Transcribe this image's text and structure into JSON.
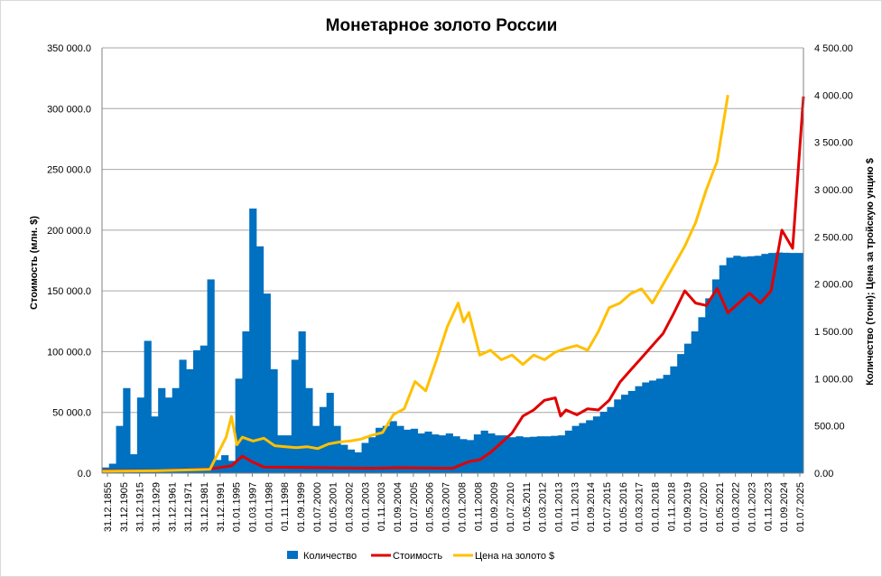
{
  "chart_data": {
    "type": "bar",
    "title": "Монетарное золото России",
    "ylabel_left": "Стоимость    (млн. $)",
    "ylabel_right": "Количество   (тонн);  Цена  за  тройскую  унцию  $",
    "ylim_left": [
      0,
      350000
    ],
    "ylim_right": [
      0,
      4500
    ],
    "y_left_ticks": [
      "0.0",
      "50 000.0",
      "100 000.0",
      "150 000.0",
      "200 000.0",
      "250 000.0",
      "300 000.0",
      "350 000.0"
    ],
    "y_right_ticks": [
      "0.00",
      "500.00",
      "1 000.00",
      "1 500.00",
      "2 000.00",
      "2 500.00",
      "3 000.00",
      "3 500.00",
      "4 000.00",
      "4 500.00"
    ],
    "x_tick_labels": [
      "31.12.1855",
      "31.12.1905",
      "31.12.1915",
      "31.12.1929",
      "31.12.1961",
      "31.12.1971",
      "31.12.1981",
      "31.12.1991",
      "01.01.1995",
      "01.03.1997",
      "01.01.1998",
      "01.11.1998",
      "01.09.1999",
      "01.07.2000",
      "01.05.2001",
      "01.03.2002",
      "01.01.2003",
      "01.11.2003",
      "01.09.2004",
      "01.07.2005",
      "01.05.2006",
      "01.03.2007",
      "01.01.2008",
      "01.11.2008",
      "01.09.2009",
      "01.07.2010",
      "01.05.2011",
      "01.03.2012",
      "01.01.2013",
      "01.11.2013",
      "01.09.2014",
      "01.07.2015",
      "01.05.2016",
      "01.03.2017",
      "01.01.2018",
      "01.11.2018",
      "01.09.2019",
      "01.07.2020",
      "01.05.2021",
      "01.03.2022",
      "01.01.2023",
      "01.11.2023",
      "01.09.2024",
      "01.07.2025"
    ],
    "grid": "horizontal",
    "legend_position": "bottom",
    "series": [
      {
        "name": "Количество",
        "kind": "bar",
        "axis": "right",
        "color": "#0070c0",
        "points": [
          [
            0,
            60
          ],
          [
            1,
            100
          ],
          [
            2,
            500
          ],
          [
            3,
            900
          ],
          [
            4,
            200
          ],
          [
            5,
            800
          ],
          [
            6,
            1400
          ],
          [
            7,
            600
          ],
          [
            8,
            900
          ],
          [
            9,
            800
          ],
          [
            10,
            900
          ],
          [
            11,
            1200
          ],
          [
            12,
            1100
          ],
          [
            13,
            1300
          ],
          [
            14,
            1350
          ],
          [
            15,
            2050
          ],
          [
            16,
            140
          ],
          [
            17,
            190
          ],
          [
            18,
            130
          ],
          [
            19,
            1000
          ],
          [
            20,
            1500
          ],
          [
            21,
            2800
          ],
          [
            22,
            2400
          ],
          [
            23,
            1900
          ],
          [
            24,
            1100
          ],
          [
            25,
            400
          ],
          [
            26,
            400
          ],
          [
            27,
            1200
          ],
          [
            28,
            1500
          ],
          [
            29,
            900
          ],
          [
            30,
            500
          ],
          [
            31,
            700
          ],
          [
            32,
            850
          ],
          [
            33,
            500
          ],
          [
            34,
            300
          ],
          [
            35,
            250
          ],
          [
            36,
            220
          ],
          [
            37,
            320
          ],
          [
            38,
            380
          ],
          [
            39,
            480
          ],
          [
            40,
            500
          ],
          [
            41,
            550
          ],
          [
            42,
            500
          ],
          [
            43,
            460
          ],
          [
            44,
            470
          ],
          [
            45,
            420
          ],
          [
            46,
            440
          ],
          [
            47,
            410
          ],
          [
            48,
            400
          ],
          [
            49,
            420
          ],
          [
            50,
            390
          ],
          [
            51,
            360
          ],
          [
            52,
            350
          ],
          [
            53,
            410
          ],
          [
            54,
            450
          ],
          [
            55,
            420
          ],
          [
            56,
            400
          ],
          [
            57,
            400
          ],
          [
            58,
            380
          ],
          [
            59,
            390
          ],
          [
            60,
            380
          ],
          [
            61,
            385
          ],
          [
            62,
            390
          ],
          [
            63,
            390
          ],
          [
            64,
            395
          ],
          [
            65,
            400
          ],
          [
            66,
            450
          ],
          [
            67,
            500
          ],
          [
            68,
            530
          ],
          [
            69,
            560
          ],
          [
            70,
            600
          ],
          [
            71,
            650
          ],
          [
            72,
            700
          ],
          [
            73,
            780
          ],
          [
            74,
            830
          ],
          [
            75,
            870
          ],
          [
            76,
            920
          ],
          [
            77,
            960
          ],
          [
            78,
            980
          ],
          [
            79,
            1000
          ],
          [
            80,
            1040
          ],
          [
            81,
            1130
          ],
          [
            82,
            1260
          ],
          [
            83,
            1370
          ],
          [
            84,
            1500
          ],
          [
            85,
            1650
          ],
          [
            86,
            1850
          ],
          [
            87,
            2050
          ],
          [
            88,
            2200
          ],
          [
            89,
            2280
          ],
          [
            90,
            2300
          ],
          [
            91,
            2290
          ],
          [
            92,
            2295
          ],
          [
            93,
            2300
          ],
          [
            94,
            2320
          ],
          [
            95,
            2330
          ],
          [
            96,
            2335
          ],
          [
            97,
            2332
          ],
          [
            98,
            2330
          ],
          [
            99,
            2330
          ]
        ]
      },
      {
        "name": "Стоимость",
        "kind": "line",
        "axis": "left",
        "color": "#e00000",
        "points": [
          [
            0,
            2000
          ],
          [
            10,
            2000
          ],
          [
            20,
            3500
          ],
          [
            24,
            6000
          ],
          [
            26,
            14000
          ],
          [
            28,
            9000
          ],
          [
            30,
            5000
          ],
          [
            40,
            4500
          ],
          [
            50,
            4000
          ],
          [
            55,
            4500
          ],
          [
            60,
            4200
          ],
          [
            65,
            4000
          ],
          [
            68,
            9500
          ],
          [
            70,
            11000
          ],
          [
            72,
            17000
          ],
          [
            74,
            25000
          ],
          [
            76,
            33000
          ],
          [
            78,
            47000
          ],
          [
            80,
            52000
          ],
          [
            82,
            60000
          ],
          [
            84,
            62000
          ],
          [
            85,
            47000
          ],
          [
            86,
            52000
          ],
          [
            88,
            48000
          ],
          [
            90,
            53000
          ],
          [
            92,
            52000
          ],
          [
            94,
            60000
          ],
          [
            96,
            75000
          ],
          [
            98,
            85000
          ],
          [
            100,
            95000
          ],
          [
            102,
            105000
          ],
          [
            104,
            115000
          ],
          [
            106,
            132000
          ],
          [
            108,
            150000
          ],
          [
            110,
            140000
          ],
          [
            112,
            138000
          ],
          [
            114,
            152000
          ],
          [
            116,
            132000
          ],
          [
            118,
            140000
          ],
          [
            120,
            148000
          ],
          [
            122,
            140000
          ],
          [
            124,
            150000
          ],
          [
            126,
            200000
          ],
          [
            128,
            185000
          ],
          [
            130,
            310000
          ]
        ]
      },
      {
        "name": "Цена на золото  $",
        "kind": "line",
        "axis": "right",
        "color": "#ffc000",
        "points": [
          [
            0,
            20
          ],
          [
            10,
            25
          ],
          [
            20,
            40
          ],
          [
            23,
            380
          ],
          [
            24,
            600
          ],
          [
            25,
            300
          ],
          [
            26,
            380
          ],
          [
            28,
            340
          ],
          [
            30,
            370
          ],
          [
            32,
            290
          ],
          [
            34,
            280
          ],
          [
            36,
            270
          ],
          [
            38,
            280
          ],
          [
            40,
            260
          ],
          [
            42,
            310
          ],
          [
            44,
            330
          ],
          [
            46,
            340
          ],
          [
            48,
            360
          ],
          [
            50,
            400
          ],
          [
            52,
            430
          ],
          [
            54,
            620
          ],
          [
            56,
            680
          ],
          [
            58,
            970
          ],
          [
            60,
            870
          ],
          [
            62,
            1200
          ],
          [
            64,
            1550
          ],
          [
            66,
            1800
          ],
          [
            67,
            1600
          ],
          [
            68,
            1700
          ],
          [
            70,
            1250
          ],
          [
            72,
            1300
          ],
          [
            74,
            1200
          ],
          [
            76,
            1250
          ],
          [
            78,
            1150
          ],
          [
            80,
            1250
          ],
          [
            82,
            1200
          ],
          [
            84,
            1280
          ],
          [
            86,
            1320
          ],
          [
            88,
            1350
          ],
          [
            90,
            1300
          ],
          [
            92,
            1500
          ],
          [
            94,
            1750
          ],
          [
            96,
            1800
          ],
          [
            98,
            1900
          ],
          [
            100,
            1950
          ],
          [
            102,
            1800
          ],
          [
            104,
            2000
          ],
          [
            106,
            2200
          ],
          [
            108,
            2400
          ],
          [
            110,
            2650
          ],
          [
            112,
            3000
          ],
          [
            114,
            3300
          ],
          [
            116,
            4000
          ]
        ]
      }
    ]
  }
}
